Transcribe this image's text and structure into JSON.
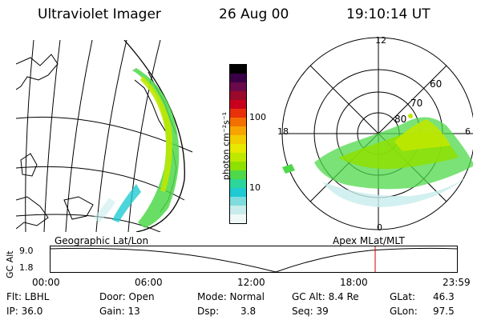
{
  "header": {
    "instrument": "Ultraviolet Imager",
    "date": "26 Aug 00",
    "time": "19:10:14 UT"
  },
  "colorbar": {
    "unit_label": "photon cm⁻²s⁻¹",
    "ticks": [
      "100",
      "10"
    ],
    "colors": [
      "#000000",
      "#3a0046",
      "#6a0a4a",
      "#9a0a2a",
      "#c8001e",
      "#e8300a",
      "#f27000",
      "#f7a400",
      "#f2cc00",
      "#e8e800",
      "#bfe800",
      "#8ee000",
      "#4fd84a",
      "#2ad69a",
      "#1fcad2",
      "#7fdcdc",
      "#c8ecec",
      "#f0f8f8"
    ]
  },
  "geo_panel": {
    "label": "Geographic Lat/Lon"
  },
  "polar_panel": {
    "label": "Apex MLat/MLT",
    "mlt_labels": {
      "top": "12",
      "left": "18",
      "right": "6",
      "bottom": "0"
    },
    "lat_labels": [
      "60",
      "70",
      "80"
    ]
  },
  "altitude_plot": {
    "y_label": "GC Alt",
    "y_ticks": [
      "9.0",
      "1.8"
    ],
    "x_ticks": [
      "00:00",
      "06:00",
      "12:00",
      "18:00",
      "23:59"
    ],
    "marker_time": "19:10",
    "marker_color": "#d00000"
  },
  "info": {
    "filter": "Flt: LBHL",
    "ip": "IP: 36.0",
    "door": "Door: Open",
    "gain": "Gain: 13",
    "mode": "Mode: Normal",
    "dsp_label": "Dsp:",
    "dsp_value": "3.8",
    "gc_alt": "GC Alt: 8.4 Re",
    "seq": "Seq: 39",
    "glat_label": "GLat:",
    "glat_value": "46.3",
    "glon_label": "GLon:",
    "glon_value": "97.5"
  }
}
